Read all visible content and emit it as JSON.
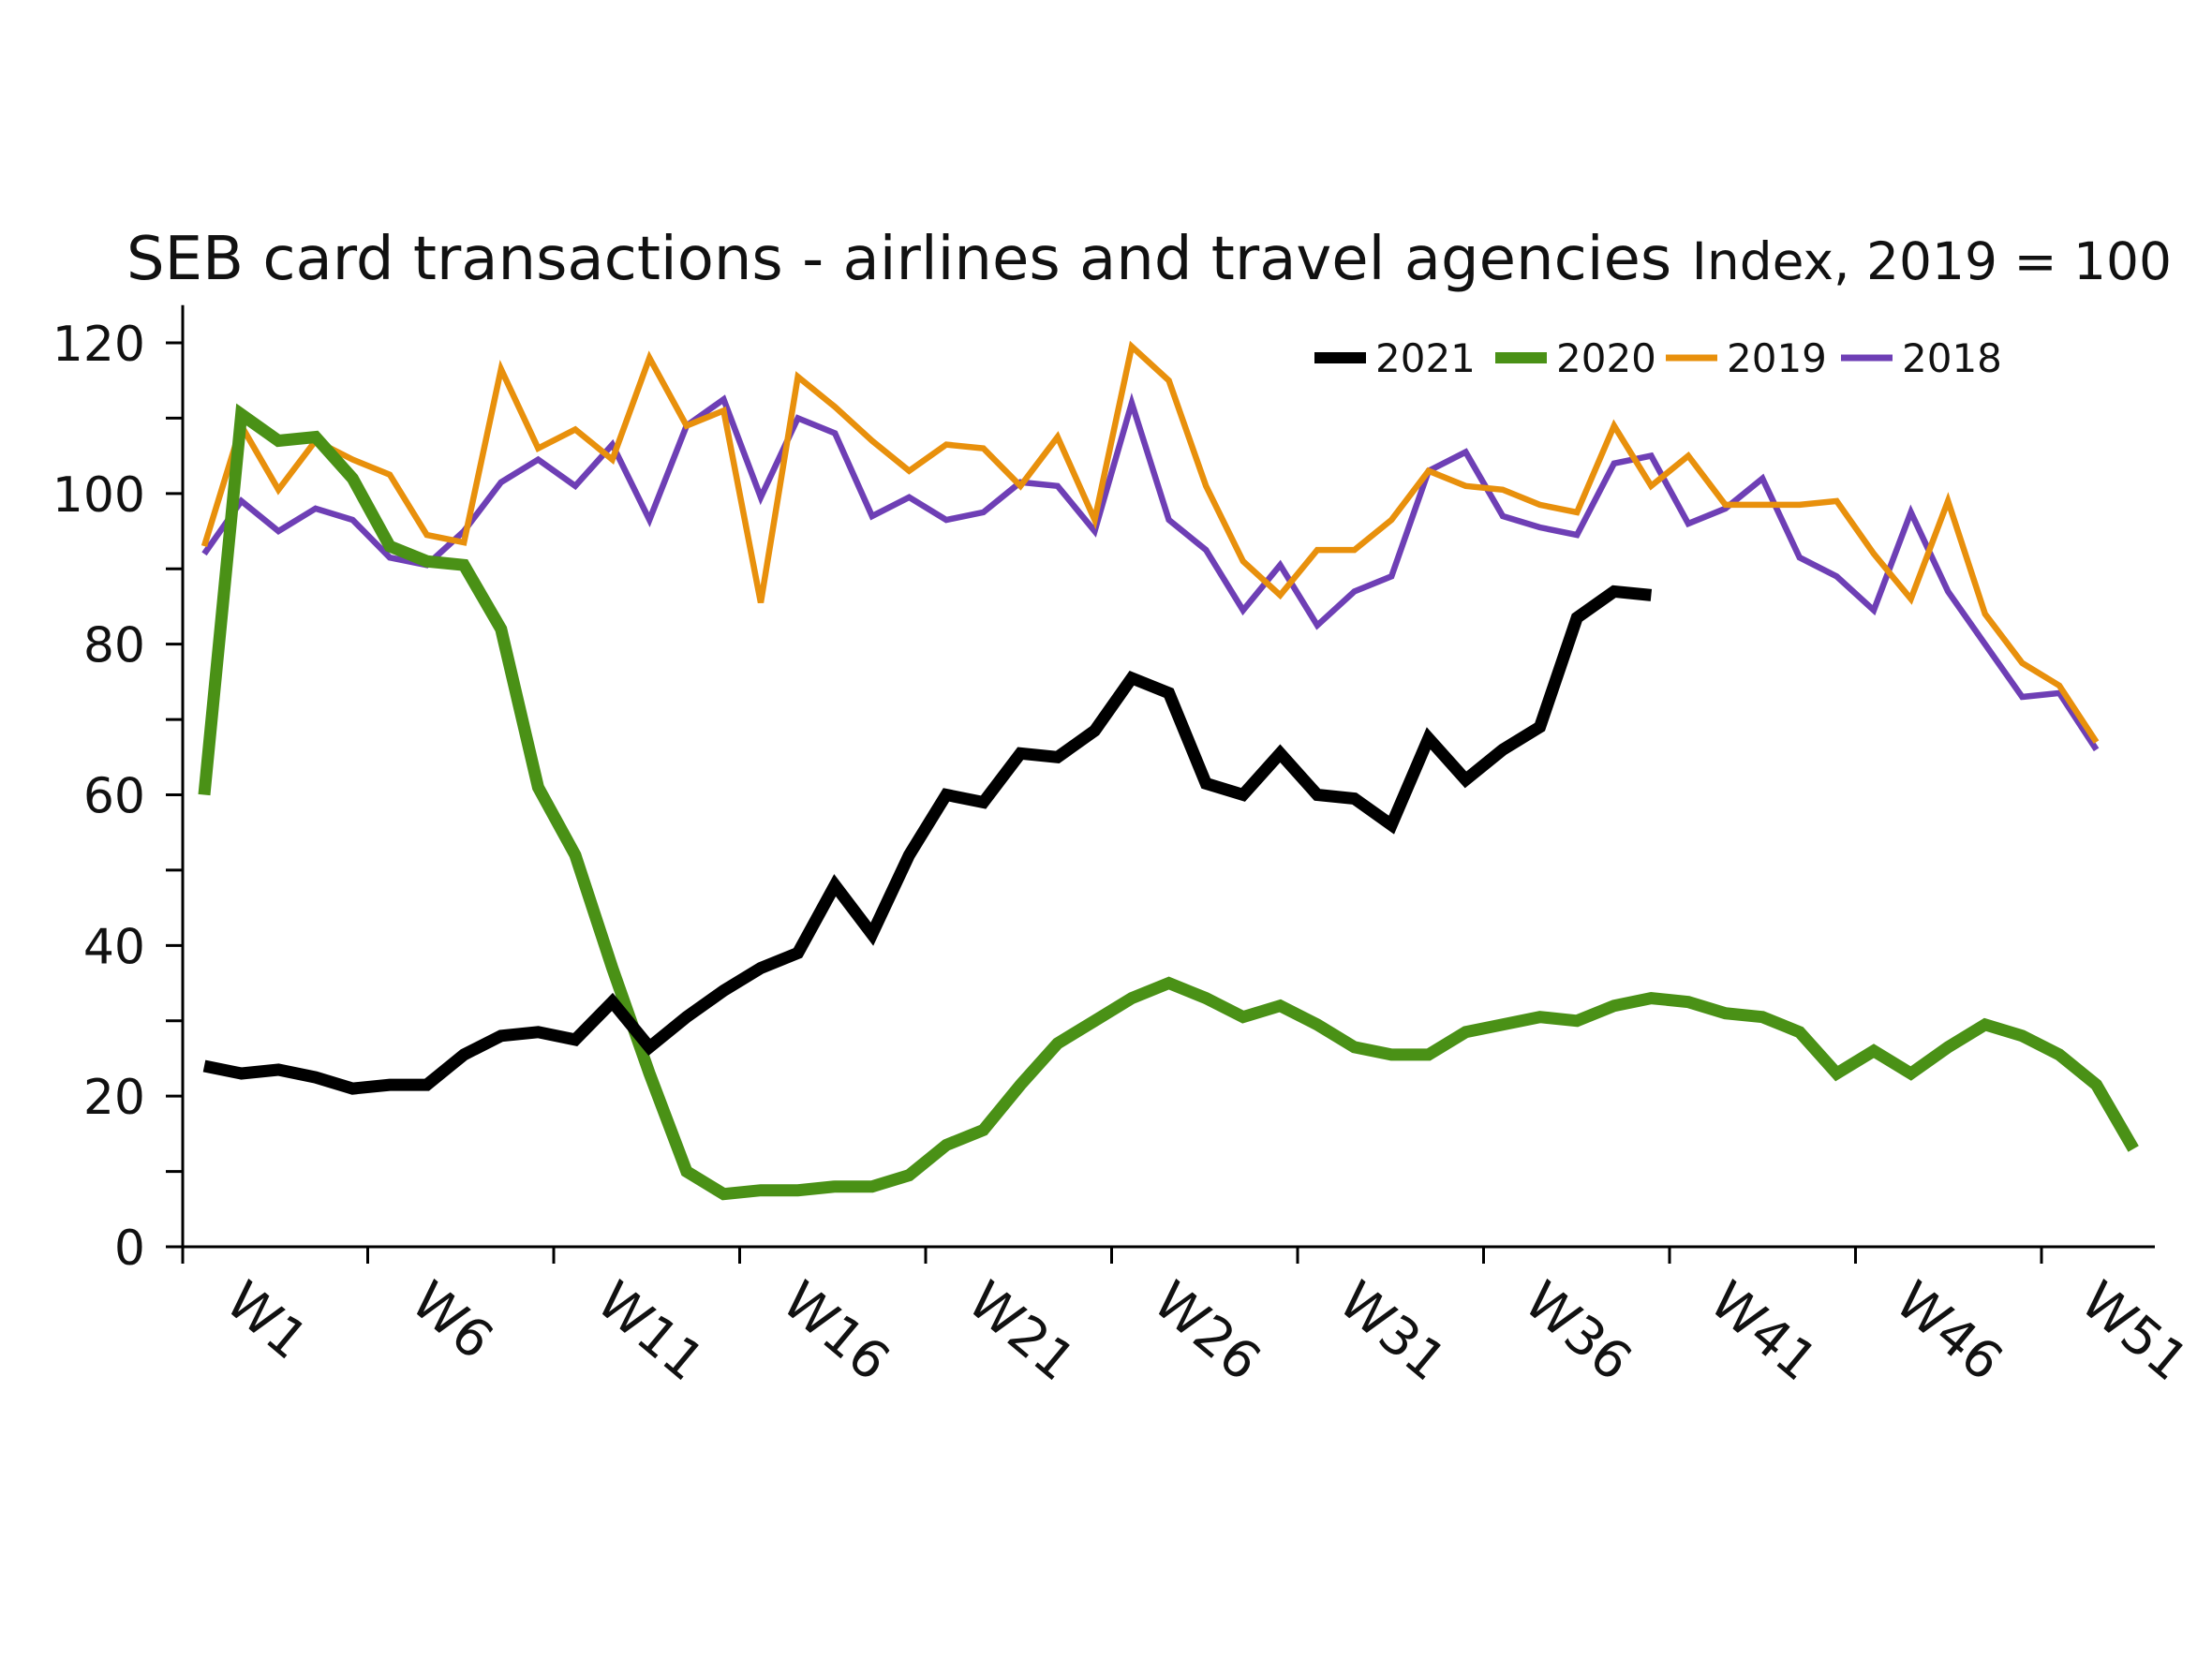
{
  "chart_data": {
    "type": "line",
    "title": "SEB card transactions - airlines and travel agencies",
    "subtitle": "Index, 2019 = 100",
    "xlabel": "",
    "ylabel": "",
    "ylim": [
      0,
      125
    ],
    "yticks": [
      0,
      20,
      40,
      60,
      80,
      100,
      120
    ],
    "xticklabels": [
      "W1",
      "W6",
      "W11",
      "W16",
      "W21",
      "W26",
      "W31",
      "W36",
      "W41",
      "W46",
      "W51"
    ],
    "xtick_weeks": [
      1,
      6,
      11,
      16,
      21,
      26,
      31,
      36,
      41,
      46,
      51
    ],
    "legend_position": "top-right",
    "series": [
      {
        "name": "2021",
        "color": "#000000",
        "start_week": 0,
        "values": [
          24,
          23,
          23.5,
          22.5,
          21,
          21.5,
          21.5,
          25.5,
          28,
          28.5,
          27.5,
          32.5,
          26.5,
          30.5,
          34,
          37,
          39,
          48,
          41.5,
          52,
          60,
          59,
          65.5,
          65,
          68.5,
          75.5,
          73.5,
          61.5,
          60,
          65.5,
          60,
          59.5,
          56,
          67.5,
          62,
          66,
          69,
          83.5,
          87,
          86.5
        ]
      },
      {
        "name": "2020",
        "color": "#4a9116",
        "start_week": 0,
        "values": [
          60,
          110.5,
          107,
          107.5,
          102,
          93,
          91,
          90.5,
          82,
          61,
          52,
          37,
          23,
          10,
          7,
          7.5,
          7.5,
          8,
          8,
          9.5,
          13.5,
          15.5,
          21.5,
          27,
          30,
          33,
          35,
          33,
          30.5,
          32,
          29.5,
          26.5,
          25.5,
          25.5,
          28.5,
          29.5,
          30.5,
          30,
          32,
          33,
          32.5,
          31,
          30.5,
          28.5,
          23,
          26,
          23,
          26.5,
          29.5,
          28,
          25.5,
          21.5,
          13
        ]
      },
      {
        "name": "2019",
        "color": "#e8900c",
        "start_week": 0,
        "values": [
          93,
          109,
          100.5,
          107,
          104.5,
          102.5,
          94.5,
          93.5,
          116.5,
          106,
          108.5,
          104.5,
          118,
          109,
          111,
          85.5,
          115.5,
          111.5,
          107,
          103,
          106.5,
          106,
          101,
          107.5,
          96.5,
          119.5,
          115,
          101,
          91,
          86.5,
          92.5,
          92.5,
          96.5,
          103,
          101,
          100.5,
          98.5,
          97.5,
          109,
          101,
          105,
          98.5,
          98.5,
          98.5,
          99,
          92,
          86,
          99,
          84,
          77.5,
          74.5,
          67
        ]
      },
      {
        "name": "2018",
        "color": "#6e3fb5",
        "start_week": 0,
        "values": [
          92,
          99,
          95,
          98,
          96.5,
          91.5,
          90.5,
          95,
          101.5,
          104.5,
          101,
          106.5,
          96.5,
          109,
          112.5,
          99.5,
          110,
          108,
          97,
          99.5,
          96.5,
          97.5,
          101.5,
          101,
          95,
          112,
          96.5,
          92.5,
          84.5,
          90.5,
          82.5,
          87,
          89,
          103,
          105.5,
          97,
          95.5,
          94.5,
          104,
          105,
          96,
          98,
          102,
          91.5,
          89,
          84.5,
          97.5,
          87,
          80,
          73,
          73.5,
          66
        ]
      }
    ]
  }
}
